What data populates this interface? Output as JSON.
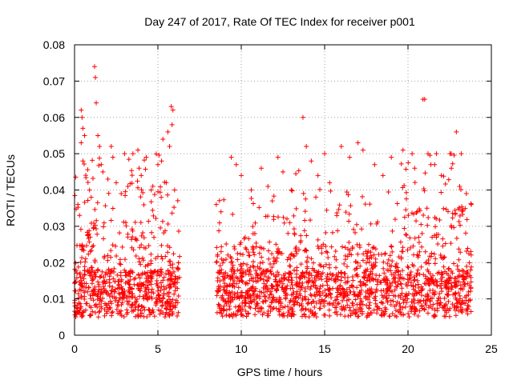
{
  "chart_data": {
    "type": "scatter",
    "title": "Day 247 of 2017, Rate Of TEC Index for receiver p001",
    "xlabel": "GPS time / hours",
    "ylabel": "ROTI / TECUs",
    "xlim": [
      0,
      25
    ],
    "ylim": [
      0,
      0.08
    ],
    "xticks": [
      0,
      5,
      10,
      15,
      20,
      25
    ],
    "yticks": [
      0,
      0.01,
      0.02,
      0.03,
      0.04,
      0.05,
      0.06,
      0.07,
      0.08
    ],
    "xtick_labels": [
      "0",
      "5",
      "10",
      "15",
      "20",
      "25"
    ],
    "ytick_labels": [
      "0",
      "0.01",
      "0.02",
      "0.03",
      "0.04",
      "0.05",
      "0.06",
      "0.07",
      "0.08"
    ],
    "grid": true,
    "marker": "+",
    "color": "#ff0000",
    "data_gap_hours": [
      6.3,
      8.5
    ],
    "series": [
      {
        "points": [
          [
            1.2,
            0.074
          ],
          [
            1.25,
            0.071
          ],
          [
            1.3,
            0.064
          ],
          [
            0.4,
            0.062
          ],
          [
            0.45,
            0.06
          ],
          [
            0.5,
            0.057
          ],
          [
            0.6,
            0.055
          ],
          [
            0.4,
            0.053
          ],
          [
            0.5,
            0.048
          ],
          [
            1.4,
            0.055
          ],
          [
            1.5,
            0.052
          ],
          [
            1.6,
            0.047
          ],
          [
            2.2,
            0.052
          ],
          [
            2.3,
            0.049
          ],
          [
            3.0,
            0.05
          ],
          [
            3.5,
            0.05
          ],
          [
            3.8,
            0.051
          ],
          [
            4.3,
            0.049
          ],
          [
            5.0,
            0.047
          ],
          [
            5.3,
            0.054
          ],
          [
            5.8,
            0.063
          ],
          [
            5.9,
            0.062
          ],
          [
            5.85,
            0.058
          ],
          [
            5.6,
            0.056
          ],
          [
            5.7,
            0.052
          ],
          [
            0.2,
            0.036
          ],
          [
            0.3,
            0.033
          ],
          [
            0.9,
            0.04
          ],
          [
            1.0,
            0.038
          ],
          [
            1.7,
            0.045
          ],
          [
            2.0,
            0.043
          ],
          [
            2.5,
            0.042
          ],
          [
            2.8,
            0.039
          ],
          [
            3.2,
            0.041
          ],
          [
            4.0,
            0.044
          ],
          [
            4.6,
            0.04
          ],
          [
            5.2,
            0.038
          ],
          [
            5.5,
            0.042
          ],
          [
            6.0,
            0.04
          ],
          [
            8.5,
            0.036
          ],
          [
            9.4,
            0.049
          ],
          [
            9.7,
            0.047
          ],
          [
            10.0,
            0.044
          ],
          [
            10.6,
            0.04
          ],
          [
            11.2,
            0.046
          ],
          [
            11.6,
            0.041
          ],
          [
            12.2,
            0.049
          ],
          [
            12.5,
            0.045
          ],
          [
            13.0,
            0.04
          ],
          [
            13.7,
            0.06
          ],
          [
            13.9,
            0.052
          ],
          [
            14.2,
            0.048
          ],
          [
            14.6,
            0.044
          ],
          [
            15.0,
            0.05
          ],
          [
            15.3,
            0.042
          ],
          [
            16.0,
            0.052
          ],
          [
            16.5,
            0.049
          ],
          [
            17.0,
            0.053
          ],
          [
            17.3,
            0.051
          ],
          [
            18.0,
            0.047
          ],
          [
            18.5,
            0.044
          ],
          [
            19.0,
            0.049
          ],
          [
            19.7,
            0.051
          ],
          [
            20.4,
            0.046
          ],
          [
            20.9,
            0.065
          ],
          [
            21.0,
            0.065
          ],
          [
            21.2,
            0.05
          ],
          [
            21.6,
            0.047
          ],
          [
            22.0,
            0.044
          ],
          [
            22.6,
            0.046
          ],
          [
            22.9,
            0.056
          ],
          [
            23.1,
            0.041
          ],
          [
            23.5,
            0.039
          ],
          [
            23.8,
            0.036
          ]
        ]
      }
    ]
  }
}
